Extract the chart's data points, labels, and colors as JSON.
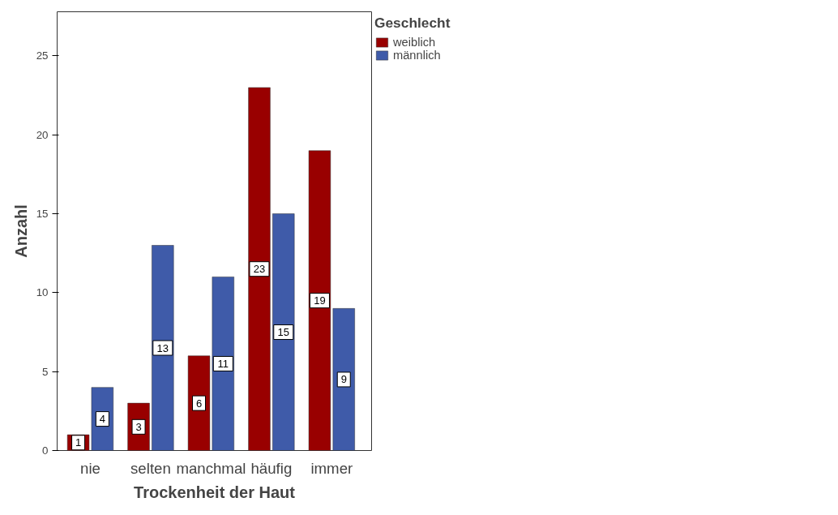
{
  "chart_data": {
    "type": "bar",
    "xlabel": "Trockenheit der Haut",
    "ylabel": "Anzahl",
    "legend_title": "Geschlecht",
    "categories": [
      "nie",
      "selten",
      "manchmal",
      "häufig",
      "immer"
    ],
    "series": [
      {
        "name": "weiblich",
        "color": "#990000",
        "values": [
          1,
          3,
          6,
          23,
          19
        ]
      },
      {
        "name": "männlich",
        "color": "#3f5ba9",
        "values": [
          4,
          13,
          11,
          15,
          9
        ]
      }
    ],
    "ylim": [
      0,
      27.8
    ],
    "yticks": [
      0,
      5,
      10,
      15,
      20,
      25
    ],
    "grid": false,
    "legend": "top right",
    "data_labels": true
  }
}
